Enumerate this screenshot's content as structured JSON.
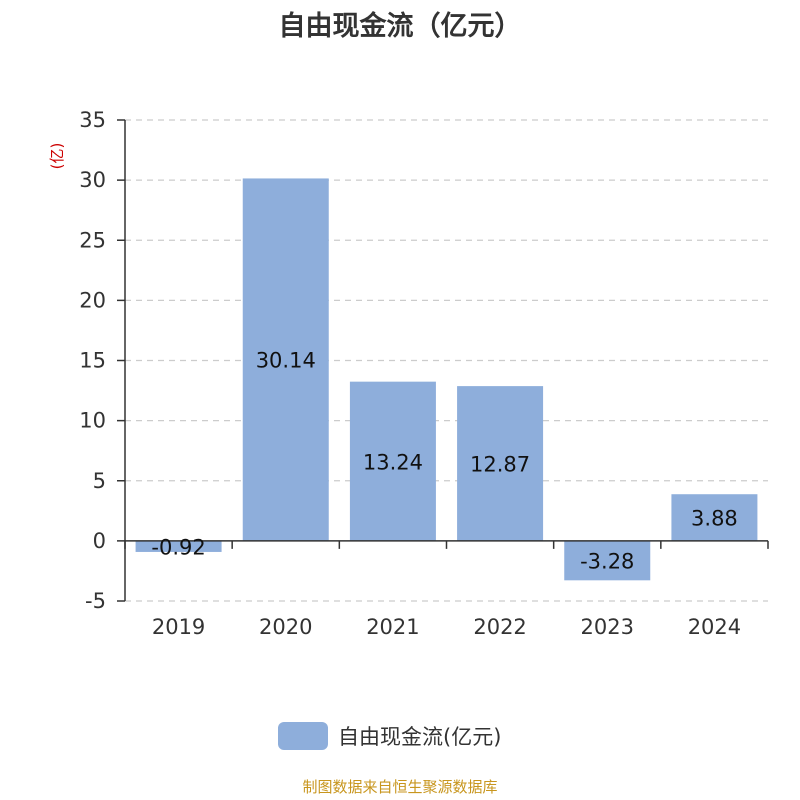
{
  "chart_data": {
    "type": "bar",
    "title": "自由现金流（亿元）",
    "unit_label": "(亿)",
    "categories": [
      "2019",
      "2020",
      "2021",
      "2022",
      "2023",
      "2024"
    ],
    "series": [
      {
        "name": "自由现金流(亿元)",
        "values": [
          -0.92,
          30.14,
          13.24,
          12.87,
          -3.28,
          3.88
        ],
        "labels": [
          "-0.92",
          "30.14",
          "13.24",
          "12.87",
          "-3.28",
          "3.88"
        ]
      }
    ],
    "ylim": [
      -5,
      35
    ],
    "yticks": [
      -5,
      0,
      5,
      10,
      15,
      20,
      25,
      30,
      35
    ],
    "grid": true,
    "legend_position": "bottom"
  },
  "colors": {
    "bar": "#8eaedb",
    "axis": "#333333",
    "grid": "#cccccc",
    "unit_label": "#cc0000"
  },
  "footer": {
    "source": "制图数据来自恒生聚源数据库"
  }
}
